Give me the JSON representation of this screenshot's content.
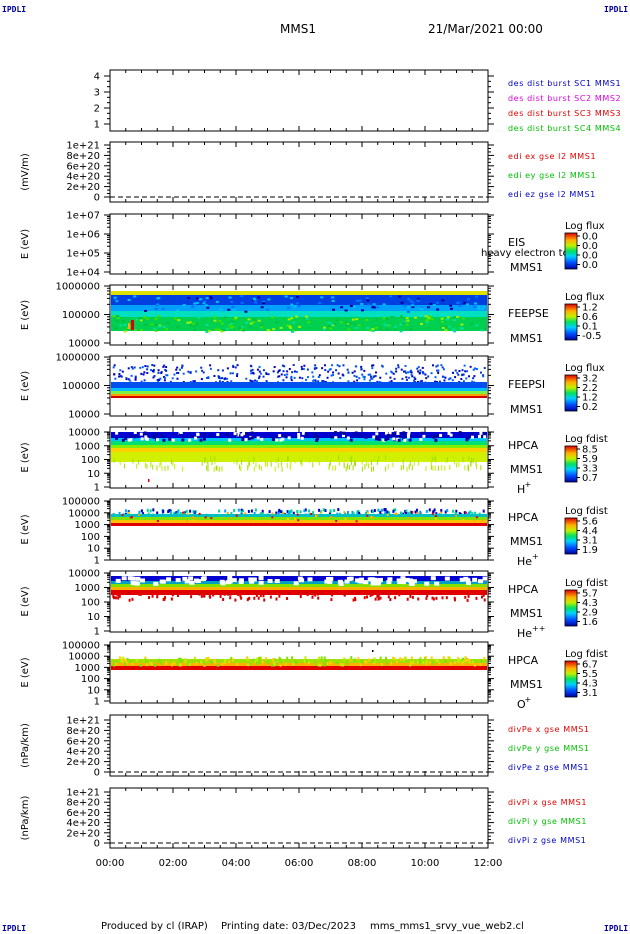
{
  "corners": {
    "tl": "IPDLI",
    "tr": "IPDLI",
    "bl": "IPDLI",
    "br": "IPDLI"
  },
  "header": {
    "title": "MMS1",
    "date": "21/Mar/2021 00:00"
  },
  "footer": {
    "produced": "Produced by cl (IRAP)",
    "printing": "Printing date: 03/Dec/2023",
    "script": "mms_mms1_srvy_vue_web2.cl"
  },
  "colors": {
    "blue": "#0000c0",
    "magenta": "#e000e0",
    "red": "#e00000",
    "green": "#00c000"
  },
  "chart_data": [
    {
      "type": "line",
      "panel": "des-dist",
      "yticks": [
        "1",
        "2",
        "3",
        "4"
      ],
      "ylabel": "",
      "legend": [
        {
          "name": "des dist burst SC1 MMS1",
          "color": "#0000c0"
        },
        {
          "name": "des dist burst SC2 MMS2",
          "color": "#e000e0"
        },
        {
          "name": "des dist burst SC3 MMS3",
          "color": "#e00000"
        },
        {
          "name": "des dist burst SC4 MMS4",
          "color": "#00c000"
        }
      ]
    },
    {
      "type": "line",
      "panel": "edi",
      "yticks": [
        "0",
        "2e+20",
        "4e+20",
        "6e+20",
        "8e+20",
        "1e+21"
      ],
      "ylabel": "(mV/m)",
      "legend": [
        {
          "name": "edi ex gse l2 MMS1",
          "color": "#e00000"
        },
        {
          "name": "edi ey gse l2 MMS1",
          "color": "#00c000"
        },
        {
          "name": "edi ez gse l2 MMS1",
          "color": "#0000c0"
        }
      ]
    },
    {
      "type": "heatmap",
      "panel": "eis",
      "yticks": [
        "1e+04",
        "1e+05",
        "1e+06",
        "1e+07"
      ],
      "ylabel": "E (eV)",
      "side": [
        "EIS",
        "MMS1"
      ],
      "overflow_label": "heavy electron tot",
      "colorbar": {
        "title": "Log flux",
        "ticks": [
          "0.0",
          "0.0",
          "0.0",
          "0.0"
        ]
      }
    },
    {
      "type": "heatmap",
      "panel": "feepse",
      "yticks": [
        "10000",
        "100000",
        "1000000"
      ],
      "ylabel": "E (eV)",
      "side": [
        "FEEPSE",
        "MMS1"
      ],
      "colorbar": {
        "title": "Log flux",
        "ticks": [
          "1.2",
          "0.6",
          "0.1",
          "-0.5"
        ]
      }
    },
    {
      "type": "heatmap",
      "panel": "feepsi",
      "yticks": [
        "10000",
        "100000",
        "1000000"
      ],
      "ylabel": "E (eV)",
      "side": [
        "FEEPSI",
        "MMS1"
      ],
      "colorbar": {
        "title": "Log flux",
        "ticks": [
          "3.2",
          "2.2",
          "1.2",
          "0.2"
        ]
      }
    },
    {
      "type": "heatmap",
      "panel": "hpca-h",
      "yticks": [
        "1",
        "10",
        "100",
        "1000",
        "10000"
      ],
      "ylabel": "E (eV)",
      "side": [
        "HPCA",
        "MMS1"
      ],
      "species": "H",
      "charge": "+",
      "colorbar": {
        "title": "Log fdist",
        "ticks": [
          "8.5",
          "5.9",
          "3.3",
          "0.7"
        ]
      }
    },
    {
      "type": "heatmap",
      "panel": "hpca-he",
      "yticks": [
        "1",
        "10",
        "100",
        "1000",
        "10000",
        "100000"
      ],
      "ylabel": "E (eV)",
      "side": [
        "HPCA",
        "MMS1"
      ],
      "species": "He",
      "charge": "+",
      "colorbar": {
        "title": "Log fdist",
        "ticks": [
          "5.6",
          "4.4",
          "3.1",
          "1.9"
        ]
      }
    },
    {
      "type": "heatmap",
      "panel": "hpca-hepp",
      "yticks": [
        "1",
        "10",
        "100",
        "1000",
        "10000"
      ],
      "ylabel": "E (eV)",
      "side": [
        "HPCA",
        "MMS1"
      ],
      "species": "He",
      "charge": "++",
      "colorbar": {
        "title": "Log fdist",
        "ticks": [
          "5.7",
          "4.3",
          "2.9",
          "1.6"
        ]
      }
    },
    {
      "type": "heatmap",
      "panel": "hpca-o",
      "yticks": [
        "1",
        "10",
        "100",
        "1000",
        "10000",
        "100000"
      ],
      "ylabel": "E (eV)",
      "side": [
        "HPCA",
        "MMS1"
      ],
      "species": "O",
      "charge": "+",
      "colorbar": {
        "title": "Log fdist",
        "ticks": [
          "6.7",
          "5.5",
          "4.3",
          "3.1"
        ]
      }
    },
    {
      "type": "line",
      "panel": "divpe",
      "yticks": [
        "0",
        "2e+20",
        "4e+20",
        "6e+20",
        "8e+20",
        "1e+21"
      ],
      "ylabel": "(nPa/km)",
      "legend": [
        {
          "name": "divPe x gse MMS1",
          "color": "#e00000"
        },
        {
          "name": "divPe y gse MMS1",
          "color": "#00c000"
        },
        {
          "name": "divPe z gse MMS1",
          "color": "#0000c0"
        }
      ]
    },
    {
      "type": "line",
      "panel": "divpi",
      "yticks": [
        "0",
        "2e+20",
        "4e+20",
        "6e+20",
        "8e+20",
        "1e+21"
      ],
      "ylabel": "(nPa/km)",
      "legend": [
        {
          "name": "divPi x gse MMS1",
          "color": "#e00000"
        },
        {
          "name": "divPi y gse MMS1",
          "color": "#00c000"
        },
        {
          "name": "divPi z gse MMS1",
          "color": "#0000c0"
        }
      ]
    }
  ],
  "time_axis": {
    "ticks": [
      "00:00",
      "02:00",
      "04:00",
      "06:00",
      "08:00",
      "10:00",
      "12:00"
    ]
  }
}
